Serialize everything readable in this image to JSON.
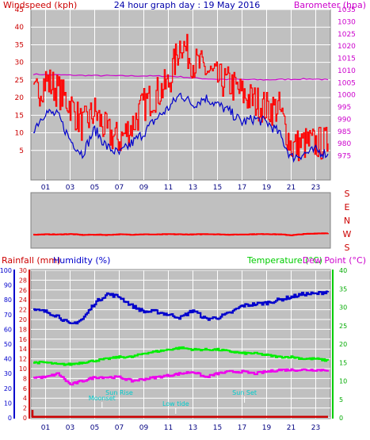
{
  "colors": {
    "background": "#ffffff",
    "plot_bg": "#c0c0c0",
    "wind_gust": "#ff0000",
    "wind_avg": "#0000cc",
    "barometer": "#cc00cc",
    "direction": "#ff0000",
    "rainfall": "#cc0000",
    "humidity": "#0000cc",
    "temperature": "#00ee00",
    "dew_point": "#ee00ee",
    "astro": "#00cccc",
    "grid": "#ffffff"
  },
  "chart_data": [
    {
      "id": "wind-baro",
      "type": "line",
      "title": "24 hour graph day : 19 May 2016",
      "ylabel_left": "Windspeed (kph)",
      "ylabel_right": "Barometer (hpa)",
      "x_ticks": [
        "01",
        "03",
        "05",
        "07",
        "09",
        "11",
        "13",
        "15",
        "17",
        "19",
        "21",
        "23"
      ],
      "ylim_left": [
        0,
        45
      ],
      "ytick_left": [
        5,
        10,
        15,
        20,
        25,
        30,
        35,
        40,
        45
      ],
      "ylim_right": [
        970,
        1035
      ],
      "ytick_right": [
        975,
        980,
        985,
        990,
        995,
        1000,
        1005,
        1010,
        1015,
        1020,
        1025,
        1030,
        1035
      ],
      "x_hours": [
        0,
        1,
        2,
        3,
        4,
        5,
        6,
        7,
        8,
        9,
        10,
        11,
        12,
        13,
        14,
        15,
        16,
        17,
        18,
        19,
        20,
        21,
        22,
        23,
        24
      ],
      "series": [
        {
          "name": "Windspeed (kph)",
          "role": "gust",
          "axis": "left",
          "values": [
            20,
            25,
            22,
            18,
            12,
            16,
            10,
            8,
            12,
            18,
            21,
            24,
            36,
            30,
            28,
            25,
            24,
            21,
            19,
            17,
            17,
            6,
            7,
            7,
            7
          ]
        },
        {
          "name": "Windspeed (kph)",
          "role": "average",
          "axis": "left",
          "values": [
            11,
            16,
            15,
            8,
            4,
            11,
            6,
            4,
            7,
            10,
            14,
            17,
            21,
            18,
            20,
            18,
            16,
            13,
            14,
            13,
            10,
            3,
            4,
            5,
            4
          ]
        },
        {
          "name": "Barometer (hpa)",
          "role": "pressure",
          "axis": "right",
          "values": [
            1008.5,
            1008.3,
            1008.2,
            1008.1,
            1008.0,
            1007.9,
            1007.9,
            1007.8,
            1007.8,
            1007.8,
            1007.7,
            1007.7,
            1007.4,
            1007.0,
            1006.6,
            1006.4,
            1006.3,
            1006.3,
            1006.2,
            1006.2,
            1006.3,
            1006.4,
            1006.5,
            1006.5,
            1006.2
          ]
        }
      ]
    },
    {
      "id": "wind-direction",
      "type": "line",
      "ylabels": [
        "S",
        "E",
        "N",
        "W",
        "S"
      ],
      "ylim": [
        0,
        360
      ],
      "x_hours": [
        0,
        1,
        2,
        3,
        4,
        5,
        6,
        7,
        8,
        9,
        10,
        11,
        12,
        13,
        14,
        15,
        16,
        17,
        18,
        19,
        20,
        21,
        22,
        23,
        24
      ],
      "series": [
        {
          "name": "Wind direction",
          "values": [
            82,
            84,
            83,
            86,
            80,
            82,
            80,
            84,
            82,
            84,
            83,
            85,
            84,
            83,
            86,
            84,
            82,
            83,
            85,
            86,
            84,
            78,
            86,
            90,
            92
          ]
        }
      ]
    },
    {
      "id": "temp-hum-rain",
      "type": "line",
      "ylabel_left_1": "Rainfall (mm)",
      "ylabel_left_2": "Humidity (%)",
      "ylabel_right_1": "Temperature (°C)",
      "ylabel_right_2": "Dew Point (°C)",
      "x_ticks": [
        "01",
        "03",
        "05",
        "07",
        "09",
        "11",
        "13",
        "15",
        "17",
        "19",
        "21",
        "23"
      ],
      "ylim_humidity": [
        0,
        100
      ],
      "ytick_humidity": [
        0,
        10,
        20,
        30,
        40,
        50,
        60,
        70,
        80,
        90,
        100
      ],
      "ylim_rain": [
        0,
        30
      ],
      "ytick_rain": [
        0,
        2,
        4,
        6,
        8,
        10,
        12,
        14,
        16,
        18,
        20,
        22,
        24,
        26,
        28,
        30
      ],
      "ylim_temp": [
        0,
        40
      ],
      "ytick_temp": [
        0,
        5,
        10,
        15,
        20,
        25,
        30,
        35,
        40
      ],
      "x_hours": [
        0,
        1,
        2,
        3,
        4,
        5,
        6,
        7,
        8,
        9,
        10,
        11,
        12,
        13,
        14,
        15,
        16,
        17,
        18,
        19,
        20,
        21,
        22,
        23,
        24
      ],
      "series": [
        {
          "name": "Humidity (%)",
          "axis": "humidity",
          "values": [
            73,
            72,
            69,
            63,
            67,
            78,
            84,
            82,
            76,
            72,
            72,
            70,
            68,
            73,
            67,
            68,
            71,
            76,
            77,
            78,
            80,
            82,
            84,
            84,
            86
          ]
        },
        {
          "name": "Temperature (°C)",
          "axis": "temp",
          "values": [
            15,
            15,
            14.5,
            14.5,
            15,
            15.5,
            16,
            16.5,
            16.5,
            17.5,
            18,
            18.5,
            19,
            18.5,
            18.5,
            18.5,
            18,
            17.5,
            17.5,
            17,
            16.5,
            16.5,
            16,
            16,
            15.5
          ]
        },
        {
          "name": "Dew Point (°C)",
          "axis": "temp",
          "values": [
            11,
            11,
            12,
            9,
            10,
            11,
            11,
            11,
            10,
            10.5,
            11,
            11.5,
            12,
            12.5,
            11,
            12,
            12.5,
            12.5,
            12,
            12.5,
            13,
            13,
            13,
            13,
            13
          ]
        },
        {
          "name": "Rainfall (mm)",
          "axis": "rain",
          "values": [
            0.2,
            0.2,
            0.2,
            0.2,
            0.2,
            0.2,
            0.2,
            0.2,
            0.2,
            0.2,
            0.2,
            0.2,
            0.2,
            0.2,
            0.2,
            0.2,
            0.2,
            0.2,
            0.2,
            0.2,
            0.2,
            0.2,
            0.2,
            0.2,
            0.2
          ]
        }
      ],
      "annotations": [
        {
          "label": "Sun Rise",
          "hour": 7.0,
          "level": 2
        },
        {
          "label": "Moonset",
          "hour": 5.6,
          "level": 1
        },
        {
          "label": "Low tide",
          "hour": 11.6,
          "level": 0
        },
        {
          "label": "Sun Set",
          "hour": 17.2,
          "level": 2
        }
      ]
    }
  ]
}
